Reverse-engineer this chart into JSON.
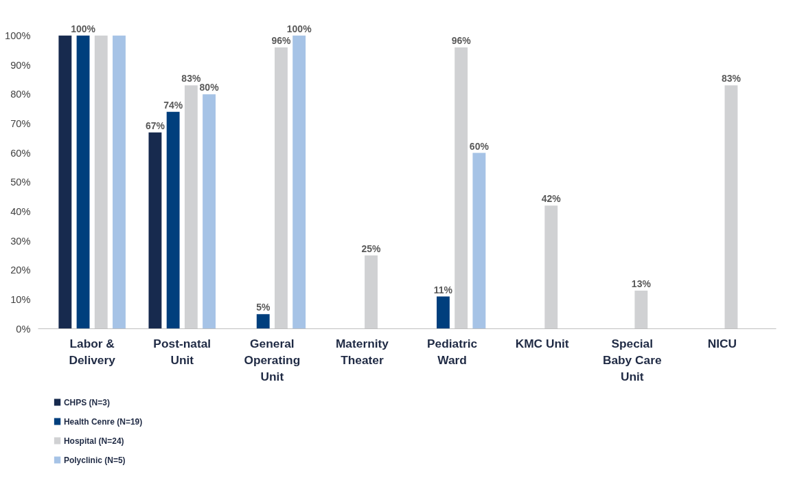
{
  "chart_data": {
    "type": "bar",
    "categories": [
      "Labor & Delivery",
      "Post-natal Unit",
      "General Operating Unit",
      "Maternity Theater",
      "Pediatric Ward",
      "KMC Unit",
      "Special Baby Care Unit",
      "NICU"
    ],
    "series": [
      {
        "name": "CHPS (N=3)",
        "color": "#172a4e",
        "values": [
          100,
          67,
          null,
          null,
          null,
          null,
          null,
          null
        ],
        "value_labels": [
          null,
          "67%",
          null,
          null,
          null,
          null,
          null,
          null
        ]
      },
      {
        "name": "Health Cenre (N=19)",
        "color": "#003f7d",
        "values": [
          100,
          74,
          5,
          null,
          11,
          null,
          null,
          null
        ],
        "value_labels": [
          "100%",
          "74%",
          "5%",
          null,
          "11%",
          null,
          null,
          null
        ]
      },
      {
        "name": "Hospital (N=24)",
        "color": "#d0d1d3",
        "values": [
          100,
          83,
          96,
          25,
          96,
          42,
          13,
          83
        ],
        "value_labels": [
          null,
          "83%",
          "96%",
          "25%",
          "96%",
          "42%",
          "13%",
          "83%"
        ]
      },
      {
        "name": "Polyclinic (N=5)",
        "color": "#a6c3e6",
        "values": [
          100,
          80,
          100,
          null,
          60,
          null,
          null,
          null
        ],
        "value_labels": [
          null,
          "80%",
          "100%",
          null,
          "60%",
          null,
          null,
          null
        ]
      }
    ],
    "ylim": [
      0,
      100
    ],
    "yticks": [
      {
        "value": 0,
        "label": "0%"
      },
      {
        "value": 10,
        "label": "10%"
      },
      {
        "value": 20,
        "label": "20%"
      },
      {
        "value": 30,
        "label": "30%"
      },
      {
        "value": 40,
        "label": "40%"
      },
      {
        "value": 50,
        "label": "50%"
      },
      {
        "value": 60,
        "label": "60%"
      },
      {
        "value": 70,
        "label": "70%"
      },
      {
        "value": 80,
        "label": "80%"
      },
      {
        "value": 90,
        "label": "90%"
      },
      {
        "value": 100,
        "label": "100%"
      }
    ],
    "grid": false,
    "legend": "bottom left"
  }
}
